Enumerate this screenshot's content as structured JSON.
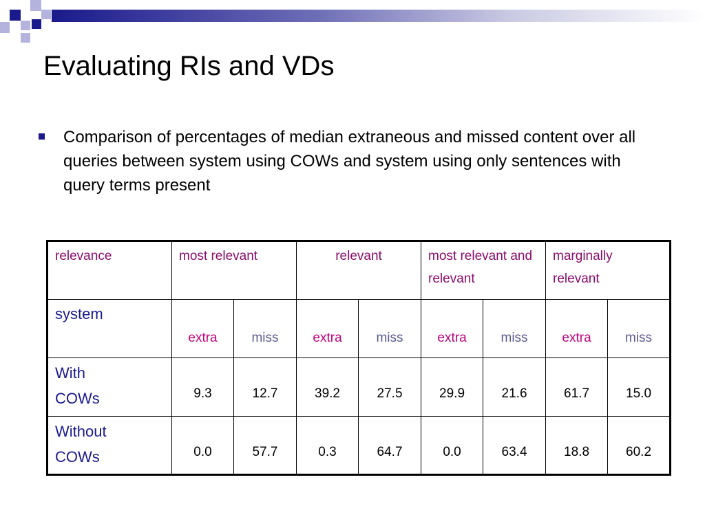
{
  "slide": {
    "title": "Evaluating RIs and VDs",
    "bullet": "Comparison of percentages of median extraneous and missed content over all queries between system using COWs and system using only sentences with query terms present"
  },
  "table": {
    "header": {
      "relevance": "relevance",
      "groups": [
        "most relevant",
        "relevant",
        "most relevant and relevant",
        "marginally relevant"
      ]
    },
    "system_label": "system",
    "sub_headers": [
      "extra",
      "miss",
      "extra",
      "miss",
      "extra",
      "miss",
      "extra",
      "miss"
    ],
    "rows": [
      {
        "label_line1": "With",
        "label_line2": "COWs",
        "values": [
          "9.3",
          "12.7",
          "39.2",
          "27.5",
          "29.9",
          "21.6",
          "61.7",
          "15.0"
        ]
      },
      {
        "label_line1": "Without",
        "label_line2": "COWs",
        "values": [
          "0.0",
          "57.7",
          "0.3",
          "64.7",
          "0.0",
          "63.4",
          "18.8",
          "60.2"
        ]
      }
    ]
  },
  "colors": {
    "accent": "#1a1a8c",
    "extra": "#c0007a",
    "miss": "#5a5a90",
    "header_text": "#8a0a6a"
  }
}
